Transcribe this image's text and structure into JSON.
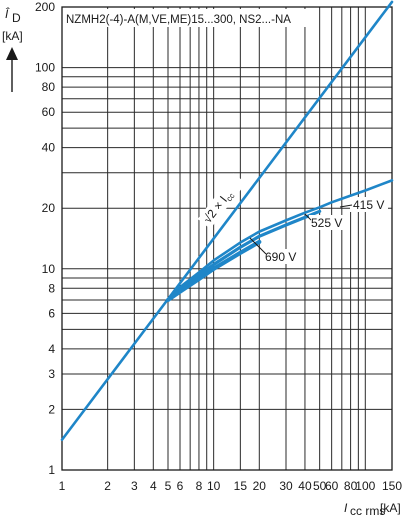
{
  "chart_data": {
    "type": "line",
    "title": "NZMH2(-4)-A(M,VE,ME)15...300, NS2...-NA",
    "x_scale": "log",
    "y_scale": "log",
    "xlim": [
      1,
      150
    ],
    "ylim": [
      1,
      200
    ],
    "grid": true,
    "xlabel": {
      "symbol": "I",
      "subscript": "cc rms",
      "unit": "[kA]"
    },
    "ylabel": {
      "symbol": "Î",
      "subscript": "D",
      "unit": "[kA]"
    },
    "x_ticks": [
      1,
      2,
      3,
      4,
      5,
      6,
      8,
      10,
      15,
      20,
      30,
      40,
      50,
      60,
      80,
      100,
      150
    ],
    "x_tick_labels": [
      "1",
      "2",
      "3",
      "4",
      "5",
      "6",
      "8",
      "10",
      "15",
      "20",
      "30",
      "40",
      "50",
      "60",
      "80",
      "100",
      "150"
    ],
    "y_ticks": [
      1,
      2,
      3,
      4,
      6,
      8,
      10,
      20,
      40,
      60,
      80,
      100,
      200
    ],
    "y_tick_labels": [
      "1",
      "2",
      "3",
      "4",
      "6",
      "8",
      "10",
      "20",
      "40",
      "60",
      "80",
      "100",
      "200"
    ],
    "series": [
      {
        "name": "√2 × Icc",
        "label_parts": {
          "main": "√2 × I",
          "sub": "cc"
        },
        "color": "#1f86c8",
        "x": [
          1,
          150
        ],
        "y": [
          1.414,
          212
        ]
      },
      {
        "name": "415 V",
        "color": "#1f86c8",
        "x": [
          5,
          6,
          8,
          10,
          15,
          20,
          30,
          40,
          50,
          60,
          80,
          100,
          150
        ],
        "y": [
          7.0,
          8.1,
          9.6,
          11.0,
          13.5,
          15.3,
          17.4,
          19.0,
          20.2,
          21.4,
          23.1,
          24.5,
          27.5
        ]
      },
      {
        "name": "525 V",
        "color": "#1f86c8",
        "x": [
          5,
          6,
          8,
          10,
          15,
          20,
          30,
          40,
          50
        ],
        "y": [
          7.0,
          7.9,
          9.3,
          10.5,
          12.8,
          14.5,
          16.5,
          18.0,
          19.3
        ]
      },
      {
        "name": "690 V",
        "color": "#1f86c8",
        "x": [
          5,
          6,
          8,
          10,
          15,
          20
        ],
        "y": [
          7.0,
          7.7,
          8.9,
          10.0,
          12.0,
          13.6
        ]
      }
    ],
    "annotations": [
      "415 V",
      "525 V",
      "690 V"
    ],
    "arrow": "up-arrow-icon"
  }
}
